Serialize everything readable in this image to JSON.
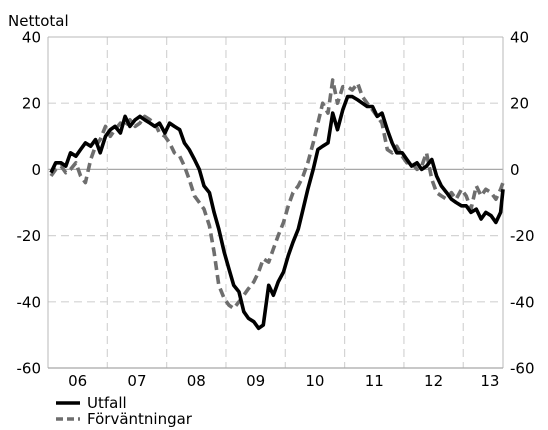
{
  "chart_data": {
    "type": "line",
    "ylabel": "Nettotal",
    "ylim": [
      -60,
      40
    ],
    "yticks": [
      -60,
      -40,
      -20,
      0,
      20,
      40
    ],
    "ytick_labels": [
      "-60",
      "-40",
      "-20",
      "0",
      "20",
      "40"
    ],
    "xlim": [
      2005.5,
      2013.17
    ],
    "xtick_labels": [
      "06",
      "07",
      "08",
      "09",
      "10",
      "11",
      "12",
      "13"
    ],
    "xtick_centers": [
      2006.0,
      2007.0,
      2008.0,
      2009.0,
      2010.0,
      2011.0,
      2012.0,
      2012.95
    ],
    "xgrid_years": [
      2006.5,
      2007.5,
      2008.5,
      2009.5,
      2010.5,
      2011.5,
      2012.5
    ],
    "grid": true,
    "right_axis_mirror": true,
    "legend_position": "bottom-left",
    "series": [
      {
        "name": "Utfall",
        "color": "#000000",
        "dash": "solid",
        "points": [
          [
            2005.55,
            -1
          ],
          [
            2005.63,
            2
          ],
          [
            2005.72,
            2
          ],
          [
            2005.8,
            1
          ],
          [
            2005.88,
            5
          ],
          [
            2005.97,
            4
          ],
          [
            2006.05,
            6
          ],
          [
            2006.13,
            8
          ],
          [
            2006.22,
            7
          ],
          [
            2006.3,
            9
          ],
          [
            2006.38,
            5
          ],
          [
            2006.47,
            10
          ],
          [
            2006.55,
            12
          ],
          [
            2006.63,
            13
          ],
          [
            2006.72,
            11
          ],
          [
            2006.8,
            16
          ],
          [
            2006.88,
            13
          ],
          [
            2006.97,
            15
          ],
          [
            2007.05,
            16
          ],
          [
            2007.13,
            15
          ],
          [
            2007.22,
            14
          ],
          [
            2007.3,
            13
          ],
          [
            2007.38,
            14
          ],
          [
            2007.47,
            11
          ],
          [
            2007.55,
            14
          ],
          [
            2007.63,
            13
          ],
          [
            2007.72,
            12
          ],
          [
            2007.8,
            8
          ],
          [
            2007.88,
            6
          ],
          [
            2007.97,
            3
          ],
          [
            2008.05,
            0
          ],
          [
            2008.13,
            -5
          ],
          [
            2008.22,
            -7
          ],
          [
            2008.3,
            -13
          ],
          [
            2008.38,
            -18
          ],
          [
            2008.47,
            -25
          ],
          [
            2008.55,
            -30
          ],
          [
            2008.63,
            -35
          ],
          [
            2008.72,
            -37
          ],
          [
            2008.8,
            -43
          ],
          [
            2008.88,
            -45
          ],
          [
            2008.97,
            -46
          ],
          [
            2009.05,
            -48
          ],
          [
            2009.13,
            -47
          ],
          [
            2009.22,
            -35
          ],
          [
            2009.3,
            -38
          ],
          [
            2009.38,
            -34
          ],
          [
            2009.47,
            -31
          ],
          [
            2009.55,
            -26
          ],
          [
            2009.63,
            -22
          ],
          [
            2009.72,
            -18
          ],
          [
            2009.8,
            -12
          ],
          [
            2009.88,
            -6
          ],
          [
            2009.97,
            0
          ],
          [
            2010.05,
            6
          ],
          [
            2010.13,
            7
          ],
          [
            2010.22,
            8
          ],
          [
            2010.3,
            17
          ],
          [
            2010.38,
            12
          ],
          [
            2010.47,
            18
          ],
          [
            2010.55,
            22
          ],
          [
            2010.63,
            22
          ],
          [
            2010.72,
            21
          ],
          [
            2010.8,
            20
          ],
          [
            2010.88,
            19
          ],
          [
            2010.97,
            19
          ],
          [
            2011.05,
            16
          ],
          [
            2011.13,
            17
          ],
          [
            2011.22,
            12
          ],
          [
            2011.3,
            8
          ],
          [
            2011.38,
            5
          ],
          [
            2011.47,
            5
          ],
          [
            2011.55,
            3
          ],
          [
            2011.63,
            1
          ],
          [
            2011.72,
            2
          ],
          [
            2011.8,
            0
          ],
          [
            2011.88,
            1
          ],
          [
            2011.97,
            3
          ],
          [
            2012.05,
            -2
          ],
          [
            2012.13,
            -5
          ],
          [
            2012.22,
            -7
          ],
          [
            2012.3,
            -9
          ],
          [
            2012.38,
            -10
          ],
          [
            2012.47,
            -11
          ],
          [
            2012.55,
            -11
          ],
          [
            2012.63,
            -13
          ],
          [
            2012.72,
            -12
          ],
          [
            2012.8,
            -15
          ],
          [
            2012.88,
            -13
          ],
          [
            2012.97,
            -14
          ],
          [
            2013.05,
            -16
          ],
          [
            2013.13,
            -13
          ],
          [
            2013.17,
            -6
          ]
        ]
      },
      {
        "name": "Förväntningar",
        "color": "#6e6e6e",
        "dash": "dashed",
        "points": [
          [
            2005.55,
            -2
          ],
          [
            2005.63,
            0
          ],
          [
            2005.72,
            1
          ],
          [
            2005.8,
            -1
          ],
          [
            2005.88,
            0
          ],
          [
            2005.97,
            2
          ],
          [
            2006.05,
            -2
          ],
          [
            2006.13,
            -4
          ],
          [
            2006.22,
            3
          ],
          [
            2006.3,
            7
          ],
          [
            2006.38,
            9
          ],
          [
            2006.47,
            13
          ],
          [
            2006.55,
            10
          ],
          [
            2006.63,
            12
          ],
          [
            2006.72,
            14
          ],
          [
            2006.8,
            13
          ],
          [
            2006.88,
            15
          ],
          [
            2006.97,
            13
          ],
          [
            2007.05,
            14
          ],
          [
            2007.13,
            16
          ],
          [
            2007.22,
            15
          ],
          [
            2007.3,
            14
          ],
          [
            2007.38,
            11
          ],
          [
            2007.47,
            10
          ],
          [
            2007.55,
            8
          ],
          [
            2007.63,
            5
          ],
          [
            2007.72,
            4
          ],
          [
            2007.8,
            1
          ],
          [
            2007.88,
            -3
          ],
          [
            2007.97,
            -8
          ],
          [
            2008.05,
            -10
          ],
          [
            2008.13,
            -12
          ],
          [
            2008.22,
            -17
          ],
          [
            2008.3,
            -25
          ],
          [
            2008.38,
            -35
          ],
          [
            2008.47,
            -39
          ],
          [
            2008.55,
            -41
          ],
          [
            2008.63,
            -42
          ],
          [
            2008.72,
            -40
          ],
          [
            2008.8,
            -38
          ],
          [
            2008.88,
            -36
          ],
          [
            2008.97,
            -34
          ],
          [
            2009.05,
            -31
          ],
          [
            2009.13,
            -27
          ],
          [
            2009.22,
            -28
          ],
          [
            2009.3,
            -24
          ],
          [
            2009.38,
            -20
          ],
          [
            2009.47,
            -16
          ],
          [
            2009.55,
            -11
          ],
          [
            2009.63,
            -7
          ],
          [
            2009.72,
            -5
          ],
          [
            2009.8,
            -2
          ],
          [
            2009.88,
            2
          ],
          [
            2009.97,
            8
          ],
          [
            2010.05,
            14
          ],
          [
            2010.13,
            20
          ],
          [
            2010.22,
            17
          ],
          [
            2010.3,
            27
          ],
          [
            2010.38,
            20
          ],
          [
            2010.47,
            25
          ],
          [
            2010.55,
            25
          ],
          [
            2010.63,
            24
          ],
          [
            2010.72,
            26
          ],
          [
            2010.8,
            22
          ],
          [
            2010.88,
            20
          ],
          [
            2010.97,
            18
          ],
          [
            2011.05,
            16
          ],
          [
            2011.13,
            14
          ],
          [
            2011.22,
            6
          ],
          [
            2011.3,
            5
          ],
          [
            2011.38,
            7
          ],
          [
            2011.47,
            4
          ],
          [
            2011.55,
            2
          ],
          [
            2011.63,
            2
          ],
          [
            2011.72,
            0
          ],
          [
            2011.8,
            1
          ],
          [
            2011.88,
            5
          ],
          [
            2011.97,
            -3
          ],
          [
            2012.05,
            -7
          ],
          [
            2012.13,
            -8
          ],
          [
            2012.22,
            -9
          ],
          [
            2012.3,
            -7
          ],
          [
            2012.38,
            -9
          ],
          [
            2012.47,
            -6
          ],
          [
            2012.55,
            -8
          ],
          [
            2012.63,
            -12
          ],
          [
            2012.72,
            -5
          ],
          [
            2012.8,
            -8
          ],
          [
            2012.88,
            -6
          ],
          [
            2012.97,
            -7
          ],
          [
            2013.05,
            -9
          ],
          [
            2013.13,
            -6
          ],
          [
            2013.17,
            -4
          ]
        ]
      }
    ]
  }
}
